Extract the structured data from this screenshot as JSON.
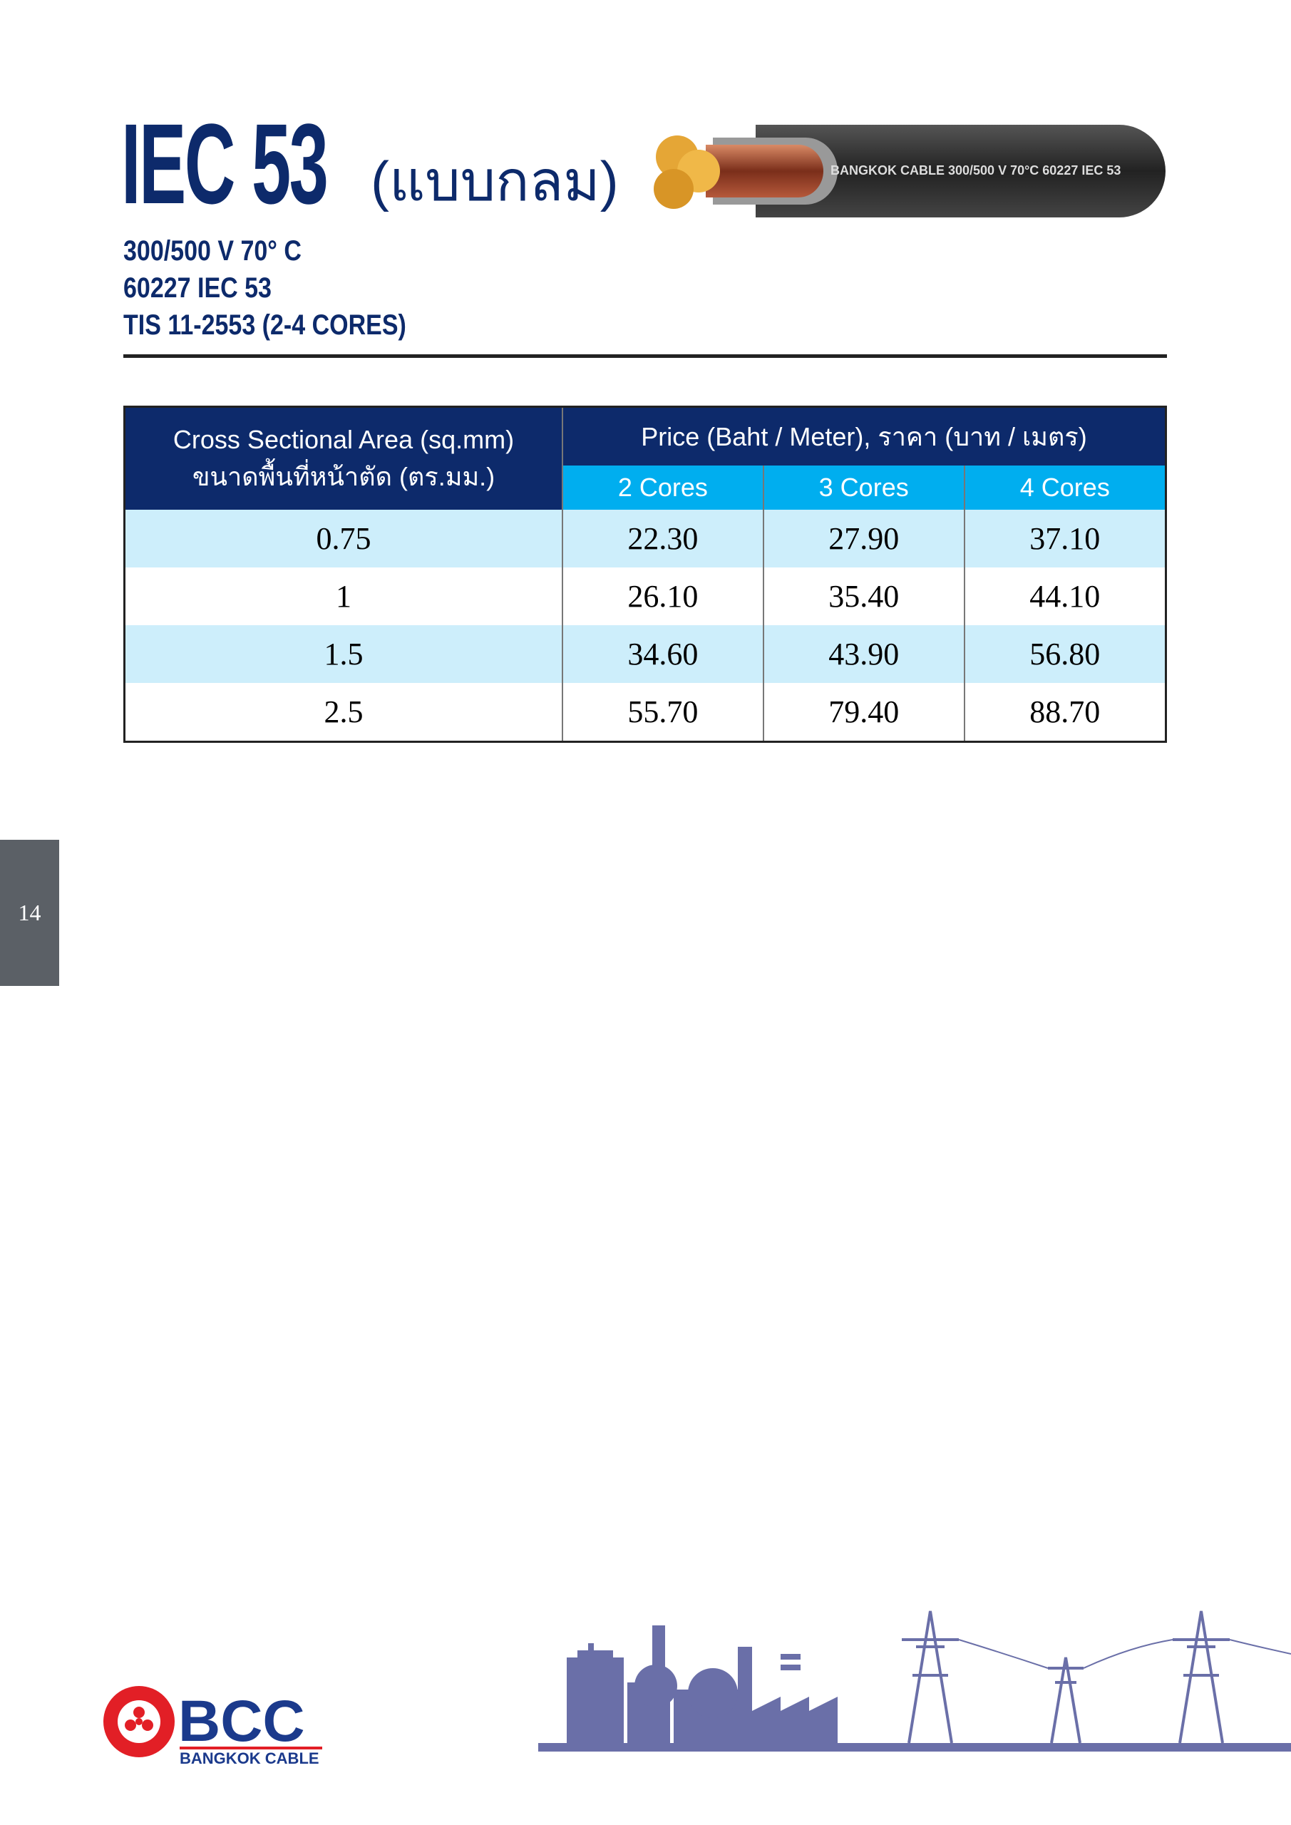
{
  "header": {
    "title": "IEC 53",
    "title_thai": "(แบบกลม)",
    "specs": [
      "300/500 V 70° C",
      "60227 IEC 53",
      "TIS 11-2553 (2-4 CORES)"
    ],
    "cable_label": "BANGKOK CABLE 300/500 V 70°C 60227 IEC 53"
  },
  "table": {
    "area_header": [
      "Cross Sectional Area (sq.mm)",
      "ขนาดพื้นที่หน้าตัด (ตร.มม.)"
    ],
    "price_header": "Price (Baht / Meter), ราคา (บาท / เมตร)",
    "columns": [
      "2 Cores",
      "3 Cores",
      "4 Cores"
    ],
    "rows": [
      [
        "0.75",
        "22.30",
        "27.90",
        "37.10"
      ],
      [
        "1",
        "26.10",
        "35.40",
        "44.10"
      ],
      [
        "1.5",
        "34.60",
        "43.90",
        "56.80"
      ],
      [
        "2.5",
        "55.70",
        "79.40",
        "88.70"
      ]
    ]
  },
  "page_number": "14",
  "logo": {
    "name": "BCC",
    "subtitle": "BANGKOK CABLE"
  }
}
